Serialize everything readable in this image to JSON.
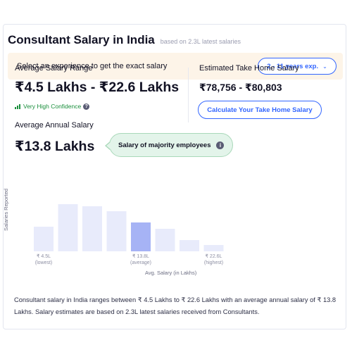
{
  "header": {
    "title": "Consultant Salary in India",
    "subtitle": "based on 2.3L latest salaries"
  },
  "experience": {
    "prompt": "Select an experience to get the exact salary",
    "selected": "2 - 11 years exp.",
    "chevron_icon": "chevron-down-icon"
  },
  "avg_range": {
    "label": "Average Salary Range",
    "value": "₹4.5 Lakhs - ₹22.6 Lakhs",
    "confidence": "Very High Confidence"
  },
  "take_home": {
    "label": "Estimated Take Home Salary",
    "value": "₹78,756 - ₹80,803",
    "button": "Calculate Your Take Home Salary"
  },
  "annual": {
    "label": "Average Annual Salary",
    "value": "₹13.8 Lakhs",
    "tooltip": "Salary of majority employees"
  },
  "colors": {
    "accent": "#3366ff",
    "bar": "#e8ebfb",
    "bar_highlight": "#a6b3f5",
    "confidence": "#1a8f3c",
    "tooltip_bg": "#e3f4ea",
    "banner_bg": "#fdf4e8"
  },
  "chart_data": {
    "type": "bar",
    "ylabel": "Salaries Reported",
    "xlabel": "Avg. Salary (in Lakhs)",
    "values": [
      35,
      67,
      64,
      57,
      41,
      32,
      16,
      9
    ],
    "highlight_index": 4,
    "ticks": [
      {
        "index": 0,
        "value": "₹ 4.5L",
        "sub": "(lowest)"
      },
      {
        "index": 4,
        "value": "₹ 13.8L",
        "sub": "(average)"
      },
      {
        "index": 7,
        "value": "₹ 22.6L",
        "sub": "(highest)"
      }
    ]
  },
  "footer": {
    "text": "Consultant salary in India ranges between ₹ 4.5 Lakhs to ₹ 22.6 Lakhs with an average annual salary of ₹ 13.8 Lakhs. Salary estimates are based on 2.3L latest salaries received from Consultants."
  }
}
